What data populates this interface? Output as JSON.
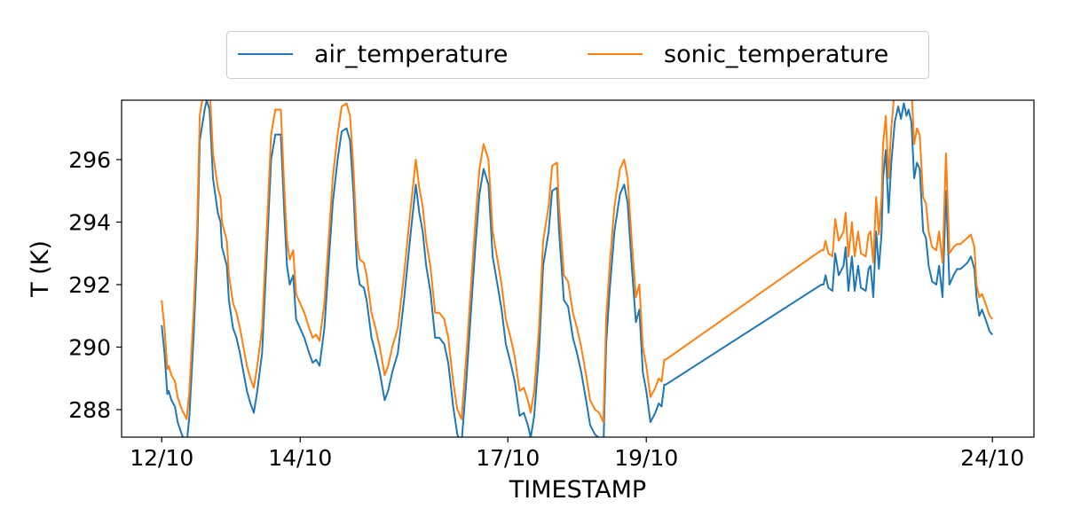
{
  "chart_data": {
    "type": "line",
    "title": "",
    "xlabel": "TIMESTAMP",
    "ylabel": "T (K)",
    "x_unit": "days since 12/10 00:00",
    "xlim": [
      -0.58,
      12.6
    ],
    "ylim": [
      287.12,
      297.9
    ],
    "grid": false,
    "legend_placement": "top-center, outside plot",
    "x_ticks": [
      {
        "value": 0,
        "label": "12/10"
      },
      {
        "value": 2,
        "label": "14/10"
      },
      {
        "value": 5,
        "label": "17/10"
      },
      {
        "value": 7,
        "label": "19/10"
      },
      {
        "value": 12,
        "label": "24/10"
      }
    ],
    "y_ticks": [
      {
        "value": 288,
        "label": "288"
      },
      {
        "value": 290,
        "label": "290"
      },
      {
        "value": 292,
        "label": "292"
      },
      {
        "value": 294,
        "label": "294"
      },
      {
        "value": 296,
        "label": "296"
      }
    ],
    "x": [
      0,
      0.04,
      0.08,
      0.1,
      0.14,
      0.19,
      0.23,
      0.29,
      0.36,
      0.4,
      0.46,
      0.51,
      0.55,
      0.62,
      0.65,
      0.69,
      0.74,
      0.81,
      0.85,
      0.87,
      0.94,
      0.97,
      1.03,
      1.08,
      1.13,
      1.18,
      1.23,
      1.28,
      1.33,
      1.38,
      1.45,
      1.51,
      1.58,
      1.64,
      1.72,
      1.77,
      1.81,
      1.85,
      1.9,
      1.94,
      2.0,
      2.06,
      2.13,
      2.18,
      2.23,
      2.28,
      2.35,
      2.41,
      2.47,
      2.54,
      2.6,
      2.67,
      2.72,
      2.77,
      2.82,
      2.86,
      2.92,
      2.96,
      3.03,
      3.09,
      3.15,
      3.22,
      3.27,
      3.33,
      3.41,
      3.5,
      3.59,
      3.67,
      3.72,
      3.77,
      3.82,
      3.88,
      3.95,
      4.01,
      4.08,
      4.14,
      4.21,
      4.27,
      4.33,
      4.4,
      4.46,
      4.53,
      4.59,
      4.65,
      4.72,
      4.78,
      4.85,
      4.91,
      4.97,
      5.04,
      5.1,
      5.17,
      5.23,
      5.29,
      5.33,
      5.38,
      5.45,
      5.51,
      5.59,
      5.64,
      5.71,
      5.74,
      5.81,
      5.87,
      5.94,
      6.0,
      6.06,
      6.13,
      6.19,
      6.26,
      6.32,
      6.38,
      6.42,
      6.47,
      6.54,
      6.62,
      6.68,
      6.73,
      6.79,
      6.85,
      6.9,
      6.95,
      7.0,
      7.06,
      7.13,
      7.18,
      7.22,
      7.26,
      7.28,
      9.53,
      9.56,
      9.59,
      9.63,
      9.69,
      9.73,
      9.78,
      9.85,
      9.88,
      9.92,
      9.97,
      10.01,
      10.06,
      10.1,
      10.17,
      10.21,
      10.24,
      10.28,
      10.32,
      10.36,
      10.4,
      10.42,
      10.46,
      10.5,
      10.54,
      10.59,
      10.64,
      10.68,
      10.72,
      10.76,
      10.79,
      10.83,
      10.87,
      10.91,
      10.95,
      11.0,
      11.04,
      11.08,
      11.13,
      11.19,
      11.23,
      11.28,
      11.33,
      11.38,
      11.44,
      11.49,
      11.54,
      11.59,
      11.64,
      11.69,
      11.74,
      11.77,
      11.81,
      11.85,
      11.9,
      11.96,
      12.0
    ],
    "series": [
      {
        "name": "air_temperature",
        "color": "#1f77b4",
        "values": [
          290.7,
          289.8,
          288.5,
          288.6,
          288.3,
          288.1,
          287.6,
          287.2,
          286.9,
          287.8,
          290.3,
          292.9,
          296.6,
          297.6,
          297.9,
          297.6,
          295.4,
          294.3,
          294.0,
          293.2,
          292.6,
          291.5,
          290.6,
          290.3,
          289.8,
          289.2,
          288.6,
          288.2,
          287.9,
          288.6,
          289.8,
          292.6,
          296.0,
          296.8,
          296.8,
          294.3,
          292.6,
          292.0,
          292.3,
          290.9,
          290.6,
          290.3,
          289.8,
          289.5,
          289.6,
          289.4,
          290.6,
          292.6,
          294.6,
          296.0,
          296.9,
          297.0,
          296.6,
          294.9,
          292.6,
          292.0,
          291.9,
          291.5,
          290.3,
          289.8,
          289.2,
          288.3,
          288.6,
          289.2,
          289.8,
          291.5,
          293.5,
          295.2,
          294.3,
          293.7,
          292.6,
          291.8,
          290.3,
          290.3,
          290.1,
          289.5,
          288.1,
          287.2,
          286.9,
          288.9,
          290.9,
          293.2,
          294.9,
          295.7,
          295.2,
          292.9,
          292.0,
          291.2,
          290.1,
          289.5,
          288.9,
          287.8,
          287.9,
          287.5,
          287.1,
          287.8,
          289.8,
          292.6,
          293.7,
          295.0,
          295.1,
          293.7,
          291.5,
          291.3,
          290.3,
          289.8,
          289.2,
          288.3,
          287.5,
          287.2,
          287.1,
          286.8,
          290.1,
          291.8,
          293.7,
          294.9,
          295.2,
          294.6,
          292.6,
          290.8,
          291.2,
          289.2,
          288.6,
          287.6,
          287.9,
          288.2,
          288.1,
          288.8,
          288.8,
          292.0,
          292.0,
          292.3,
          291.9,
          291.8,
          293.0,
          292.3,
          292.6,
          293.2,
          291.8,
          292.9,
          291.8,
          292.6,
          291.9,
          291.8,
          292.5,
          292.6,
          291.6,
          293.7,
          292.5,
          293.7,
          295.4,
          296.3,
          294.3,
          295.9,
          297.2,
          297.7,
          297.3,
          297.8,
          297.4,
          297.6,
          297.2,
          295.4,
          295.9,
          295.7,
          293.7,
          293.5,
          292.6,
          292.1,
          292.0,
          292.6,
          291.6,
          295.0,
          292.0,
          292.3,
          292.5,
          292.5,
          292.6,
          292.7,
          292.9,
          292.5,
          291.6,
          291.0,
          291.2,
          290.9,
          290.5,
          290.4
        ]
      },
      {
        "name": "sonic_temperature",
        "color": "#ff7f0e",
        "values": [
          291.5,
          290.6,
          289.3,
          289.4,
          289.1,
          288.9,
          288.4,
          288.0,
          287.7,
          288.6,
          291.1,
          293.7,
          297.4,
          298.4,
          298.7,
          298.4,
          296.2,
          295.1,
          294.8,
          294.0,
          293.4,
          292.3,
          291.4,
          291.1,
          290.6,
          290.0,
          289.4,
          289.0,
          288.7,
          289.4,
          290.6,
          293.4,
          296.8,
          297.6,
          297.6,
          295.1,
          293.4,
          292.8,
          293.1,
          291.7,
          291.4,
          291.1,
          290.6,
          290.3,
          290.4,
          290.2,
          291.4,
          293.4,
          295.4,
          296.8,
          297.7,
          297.8,
          297.4,
          295.7,
          293.4,
          292.8,
          292.7,
          292.3,
          291.1,
          290.6,
          290.0,
          289.1,
          289.4,
          290.0,
          290.6,
          292.3,
          294.3,
          296.0,
          295.1,
          294.5,
          293.4,
          292.6,
          291.1,
          291.1,
          290.9,
          290.3,
          288.9,
          288.0,
          287.7,
          289.7,
          291.7,
          294.0,
          295.7,
          296.5,
          296.0,
          293.7,
          292.8,
          292.0,
          290.9,
          290.3,
          289.7,
          288.6,
          288.7,
          288.3,
          287.9,
          288.6,
          290.6,
          293.4,
          294.5,
          295.8,
          295.9,
          294.5,
          292.3,
          292.1,
          291.1,
          290.6,
          290.0,
          289.1,
          288.3,
          288.0,
          287.9,
          287.6,
          290.9,
          292.6,
          294.5,
          295.7,
          296.0,
          295.4,
          293.4,
          291.6,
          292.0,
          290.0,
          289.4,
          288.4,
          288.7,
          289.0,
          288.9,
          289.6,
          289.6,
          293.1,
          293.1,
          293.4,
          293.0,
          292.9,
          294.1,
          293.4,
          293.7,
          294.3,
          292.9,
          294.0,
          292.9,
          293.7,
          293.0,
          292.9,
          293.6,
          293.7,
          292.7,
          294.8,
          293.6,
          294.8,
          296.5,
          297.4,
          295.4,
          297.0,
          298.3,
          298.8,
          298.4,
          298.9,
          298.5,
          298.7,
          298.3,
          296.5,
          297.0,
          296.8,
          294.8,
          294.6,
          293.7,
          293.2,
          293.1,
          293.7,
          292.7,
          296.2,
          293.0,
          293.2,
          293.3,
          293.3,
          293.4,
          293.5,
          293.6,
          293.2,
          292.0,
          291.6,
          291.7,
          291.4,
          291.0,
          290.9
        ]
      }
    ]
  }
}
